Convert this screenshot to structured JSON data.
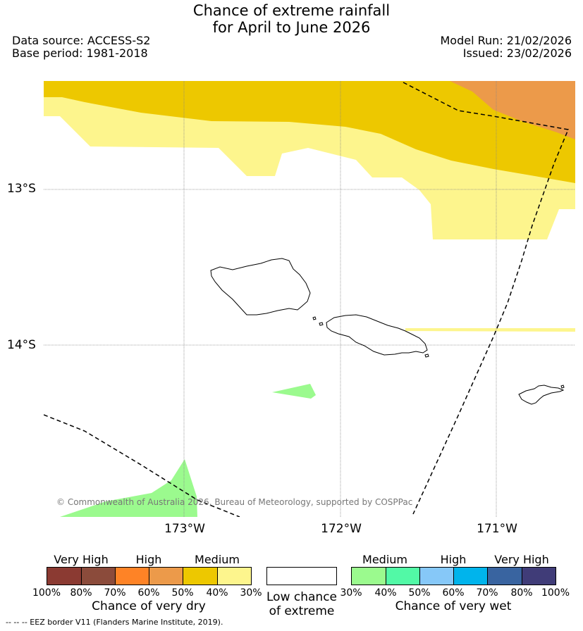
{
  "title": {
    "line1": "Chance of extreme rainfall",
    "line2": "for April to June 2026"
  },
  "meta": {
    "data_source": "Data source: ACCESS-S2",
    "base_period": "Base period: 1981-2018",
    "model_run": "Model Run: 21/02/2026",
    "issued": "Issued: 23/02/2026"
  },
  "axes": {
    "lat_labels": [
      "13°S",
      "14°S"
    ],
    "lon_labels": [
      "173°W",
      "172°W",
      "171°W"
    ]
  },
  "copyright": "© Commonwealth of Australia 2026, Bureau of Meteorology, supported by COSPPac",
  "legend": {
    "dry": {
      "categories": [
        "Very High",
        "High",
        "Medium"
      ],
      "ticks": [
        "100%",
        "80%",
        "70%",
        "60%",
        "50%",
        "40%",
        "30%"
      ],
      "colors": [
        "#8b3a32",
        "#8b4b3b",
        "#fe8326",
        "#ec9a4a",
        "#edc800",
        "#fdf58d"
      ],
      "caption": "Chance of very dry"
    },
    "low": {
      "caption_line1": "Low chance",
      "caption_line2": "of extreme"
    },
    "wet": {
      "categories": [
        "Medium",
        "High",
        "Very High"
      ],
      "ticks": [
        "30%",
        "40%",
        "50%",
        "60%",
        "70%",
        "80%",
        "100%"
      ],
      "colors": [
        "#9bfa8e",
        "#52f9a6",
        "#86c8f8",
        "#00b4ec",
        "#3964a0",
        "#403c78"
      ],
      "caption": "Chance of very wet"
    }
  },
  "footer": "--  --  -- EEZ border V11 (Flanders Marine Institute, 2019)."
}
